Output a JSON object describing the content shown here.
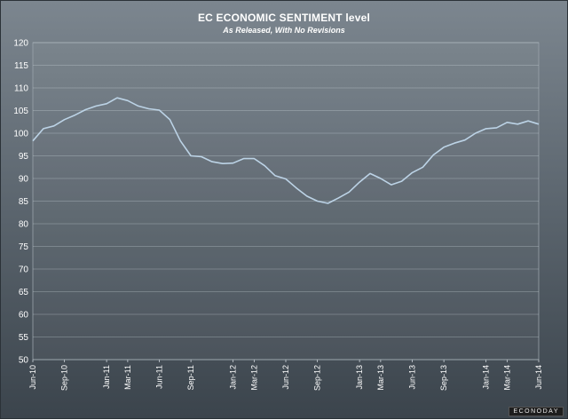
{
  "chart_data": {
    "type": "line",
    "title": "EC ECONOMIC SENTIMENT level",
    "subtitle": "As Released, With No Revisions",
    "xlabel": "",
    "ylabel": "",
    "ylim": [
      50,
      120
    ],
    "yticks": [
      50,
      55,
      60,
      65,
      70,
      75,
      80,
      85,
      90,
      95,
      100,
      105,
      110,
      115,
      120
    ],
    "x_tick_labels": [
      "Jun-10",
      "Sep-10",
      "Jan-11",
      "Mar-11",
      "Jun-11",
      "Sep-11",
      "Jan-12",
      "Mar-12",
      "Jun-12",
      "Sep-12",
      "Jan-13",
      "Mar-13",
      "Jun-13",
      "Sep-13",
      "Jan-14",
      "Mar-14",
      "Jun-14"
    ],
    "grid": true,
    "legend": "none",
    "line_color": "#bcd3e6",
    "x": [
      "Jun-10",
      "Jul-10",
      "Aug-10",
      "Sep-10",
      "Oct-10",
      "Nov-10",
      "Dec-10",
      "Jan-11",
      "Feb-11",
      "Mar-11",
      "Apr-11",
      "May-11",
      "Jun-11",
      "Jul-11",
      "Aug-11",
      "Sep-11",
      "Oct-11",
      "Nov-11",
      "Dec-11",
      "Jan-12",
      "Feb-12",
      "Mar-12",
      "Apr-12",
      "May-12",
      "Jun-12",
      "Jul-12",
      "Aug-12",
      "Sep-12",
      "Oct-12",
      "Nov-12",
      "Dec-12",
      "Jan-13",
      "Feb-13",
      "Mar-13",
      "Apr-13",
      "May-13",
      "Jun-13",
      "Jul-13",
      "Aug-13",
      "Sep-13",
      "Oct-13",
      "Nov-13",
      "Dec-13",
      "Jan-14",
      "Feb-14",
      "Mar-14",
      "Apr-14",
      "May-14",
      "Jun-14"
    ],
    "values": [
      98.3,
      101.0,
      101.6,
      103.0,
      104.0,
      105.2,
      106.0,
      106.5,
      107.8,
      107.2,
      106.0,
      105.4,
      105.1,
      103.0,
      98.3,
      95.0,
      94.8,
      93.7,
      93.3,
      93.4,
      94.4,
      94.4,
      92.8,
      90.6,
      89.9,
      87.9,
      86.1,
      85.0,
      84.5,
      85.7,
      87.0,
      89.2,
      91.1,
      90.0,
      88.6,
      89.4,
      91.3,
      92.5,
      95.2,
      96.9,
      97.8,
      98.5,
      100.0,
      101.0,
      101.2,
      102.4,
      102.0,
      102.7,
      102.0
    ]
  },
  "brand": "ECONODAY"
}
